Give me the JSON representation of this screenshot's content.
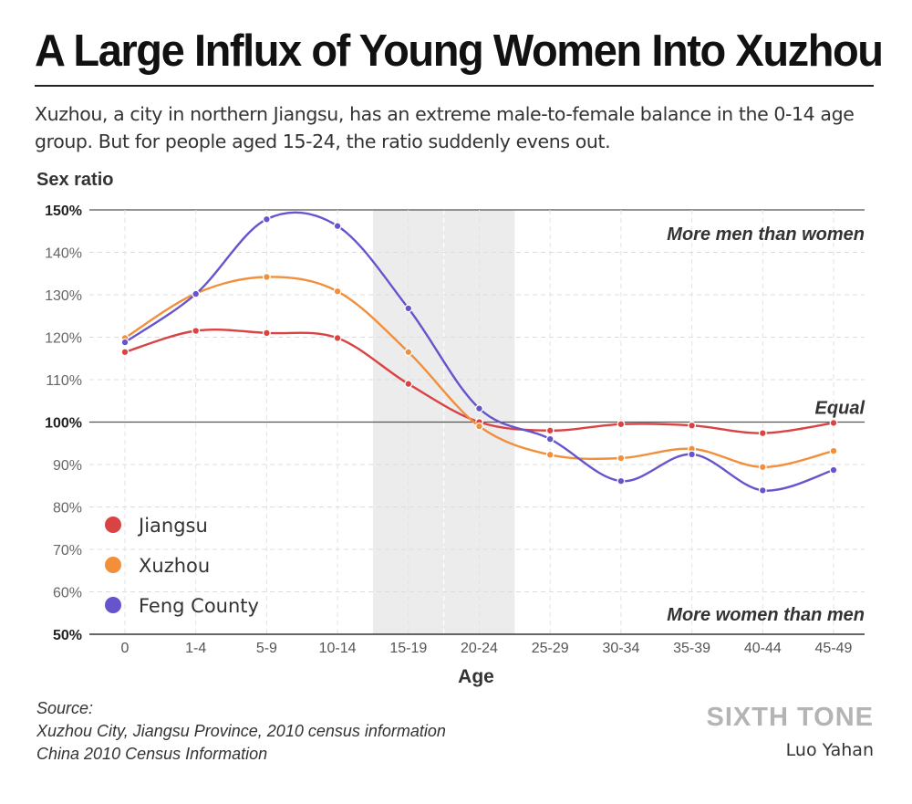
{
  "header": {
    "title": "A Large Influx of Young Women Into Xuzhou",
    "subtitle": "Xuzhou, a city in northern Jiangsu, has an extreme male-to-female balance in the 0-14 age group. But for people aged 15-24, the ratio suddenly evens out."
  },
  "chart_data": {
    "type": "line",
    "ylabel": "Sex ratio",
    "xlabel": "Age",
    "categories": [
      "0",
      "1-4",
      "5-9",
      "10-14",
      "15-19",
      "20-24",
      "25-29",
      "30-34",
      "35-39",
      "40-44",
      "45-49"
    ],
    "ylim": [
      50,
      150
    ],
    "yticks": [
      "150%",
      "140%",
      "130%",
      "120%",
      "110%",
      "100%",
      "90%",
      "80%",
      "70%",
      "60%",
      "50%"
    ],
    "ytick_values": [
      150,
      140,
      130,
      120,
      110,
      100,
      90,
      80,
      70,
      60,
      50
    ],
    "grid": true,
    "legend_position": "bottom-left",
    "highlight_band": [
      "15-19",
      "20-24"
    ],
    "reference_line": 100,
    "annotations": {
      "top": "More men than women",
      "equal": "Equal",
      "bottom": "More women than men"
    },
    "series": [
      {
        "name": "Jiangsu",
        "color": "#d94343",
        "values": [
          116.5,
          121.5,
          121,
          119.8,
          109,
          100,
          98,
          99.5,
          99.2,
          97.4,
          99.8
        ]
      },
      {
        "name": "Xuzhou",
        "color": "#f28f3b",
        "values": [
          119.8,
          130.3,
          134.2,
          130.8,
          116.5,
          99,
          92.3,
          91.5,
          93.7,
          89.4,
          93.2
        ]
      },
      {
        "name": "Feng County",
        "color": "#6654cc",
        "values": [
          118.8,
          130.2,
          147.8,
          146.2,
          126.8,
          103.2,
          96,
          86.1,
          92.4,
          83.9,
          88.7
        ]
      }
    ]
  },
  "footer": {
    "source_label": "Source:",
    "source_lines": [
      "Xuzhou City, Jiangsu Province, 2010 census information",
      "China 2010 Census Information"
    ],
    "brand": "SIXTH TONE",
    "author": "Luo Yahan"
  }
}
